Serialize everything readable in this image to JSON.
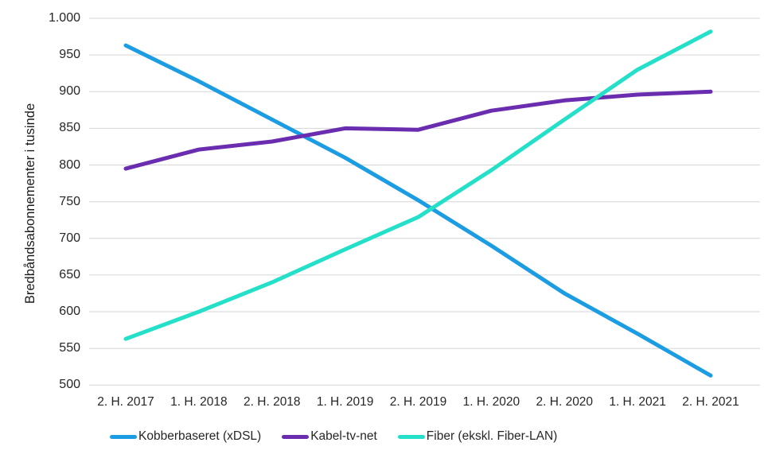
{
  "chart_data": {
    "type": "line",
    "title": "",
    "xlabel": "",
    "ylabel": "Bredbåndsabonnementer i tusinde",
    "ylim": [
      500,
      1000
    ],
    "ytick_step": 50,
    "grid": true,
    "legend_position": "bottom",
    "background_color": "#FFFFFF",
    "grid_color": "#D6D6D6",
    "text_color": "#262626",
    "yticks": [
      {
        "label": "1.000",
        "value": 1000
      },
      {
        "label": "950",
        "value": 950
      },
      {
        "label": "900",
        "value": 900
      },
      {
        "label": "850",
        "value": 850
      },
      {
        "label": "800",
        "value": 800
      },
      {
        "label": "750",
        "value": 750
      },
      {
        "label": "700",
        "value": 700
      },
      {
        "label": "650",
        "value": 650
      },
      {
        "label": "600",
        "value": 600
      },
      {
        "label": "550",
        "value": 550
      },
      {
        "label": "500",
        "value": 500
      }
    ],
    "categories": [
      "2. H. 2017",
      "1. H. 2018",
      "2. H. 2018",
      "1. H. 2019",
      "2. H. 2019",
      "1. H. 2020",
      "2. H. 2020",
      "1. H. 2021",
      "2. H. 2021"
    ],
    "series": [
      {
        "name": "Kobberbaseret (xDSL)",
        "color": "#1C9DE3",
        "values": [
          963,
          914,
          862,
          810,
          752,
          690,
          625,
          570,
          513
        ]
      },
      {
        "name": "Kabel-tv-net",
        "color": "#6A2DAF",
        "values": [
          795,
          821,
          832,
          850,
          848,
          874,
          888,
          896,
          900
        ]
      },
      {
        "name": "Fiber (ekskl. Fiber-LAN)",
        "color": "#25E0C8",
        "values": [
          563,
          600,
          640,
          685,
          729,
          793,
          862,
          930,
          982
        ]
      }
    ]
  }
}
